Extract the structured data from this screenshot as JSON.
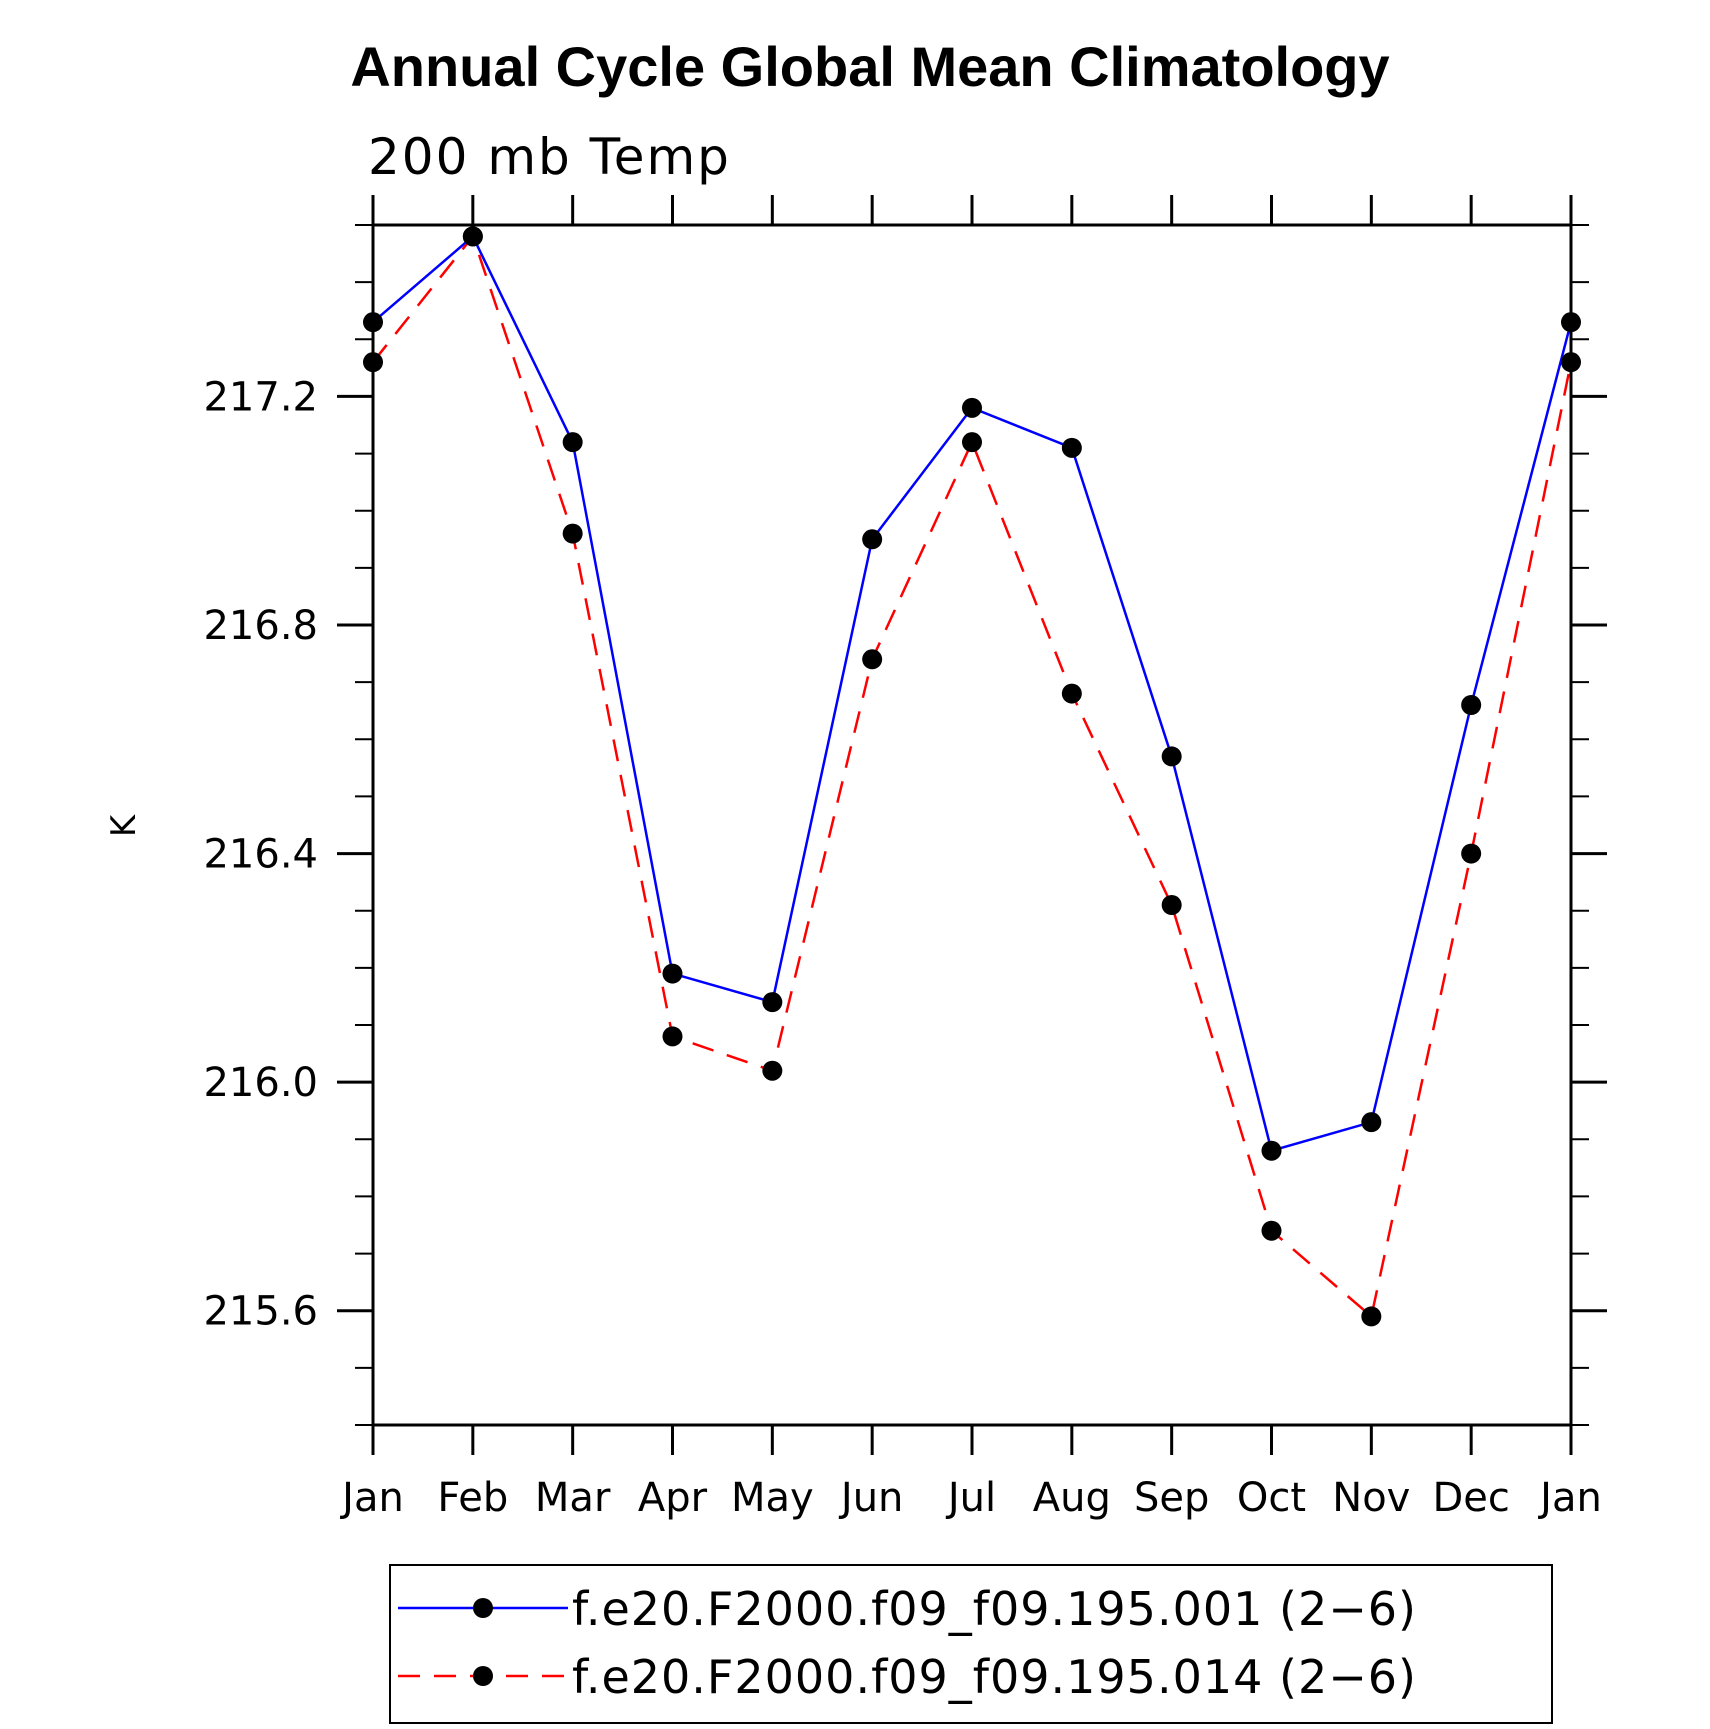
{
  "chart_data": {
    "type": "line",
    "title": "Annual Cycle Global Mean Climatology",
    "subtitle": "200 mb Temp",
    "xlabel": "",
    "ylabel": "K",
    "categories": [
      "Jan",
      "Feb",
      "Mar",
      "Apr",
      "May",
      "Jun",
      "Jul",
      "Aug",
      "Sep",
      "Oct",
      "Nov",
      "Dec",
      "Jan"
    ],
    "ylim": [
      215.4,
      217.5
    ],
    "yticks": [
      "215.6",
      "216.0",
      "216.4",
      "216.8",
      "217.2"
    ],
    "ytick_values": [
      215.6,
      216.0,
      216.4,
      216.8,
      217.2
    ],
    "legend_position": "bottom",
    "grid": false,
    "series": [
      {
        "name": "f.e20.F2000.f09_f09.195.001 (2−6)",
        "color": "#0000ff",
        "dash": "solid",
        "values": [
          217.33,
          217.48,
          217.12,
          216.19,
          216.14,
          216.95,
          217.18,
          217.11,
          216.57,
          215.88,
          215.93,
          216.66,
          217.33
        ]
      },
      {
        "name": "f.e20.F2000.f09_f09.195.014 (2−6)",
        "color": "#ff0000",
        "dash": "dashed",
        "values": [
          217.26,
          217.48,
          216.96,
          216.08,
          216.02,
          216.74,
          217.12,
          216.68,
          216.31,
          215.74,
          215.59,
          216.4,
          217.26
        ]
      }
    ],
    "marker_color": "#000000"
  }
}
